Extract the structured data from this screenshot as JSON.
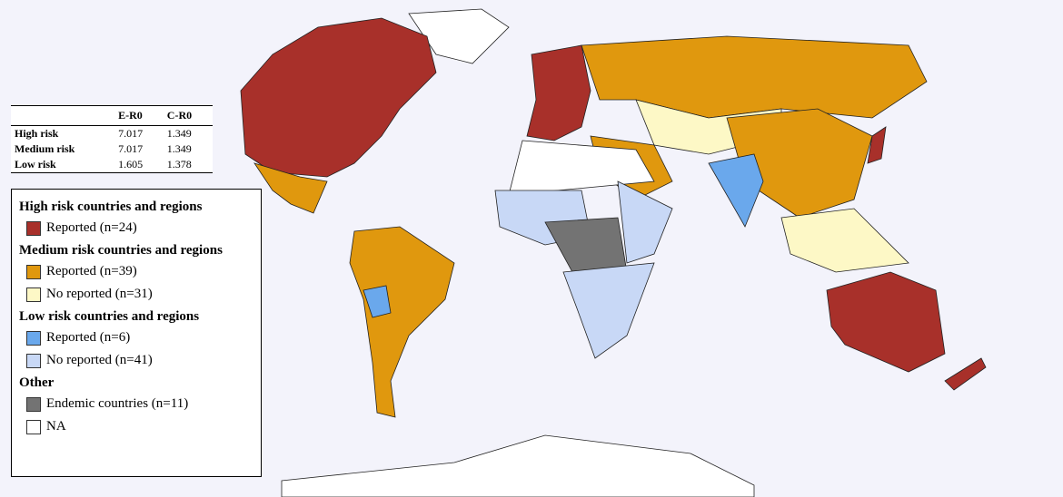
{
  "table": {
    "header": [
      "E-R0",
      "C-R0"
    ],
    "rows": [
      [
        "High risk",
        7.017,
        1.349
      ],
      [
        "Medium risk",
        7.017,
        1.349
      ],
      [
        "Low risk",
        1.605,
        1.378
      ]
    ]
  },
  "legend": {
    "groups": [
      {
        "title": "High risk countries and regions",
        "items": [
          {
            "label": "Reported (n=24)",
            "color": "#a8302a"
          }
        ]
      },
      {
        "title": "Medium risk countries and regions",
        "items": [
          {
            "label": "Reported (n=39)",
            "color": "#e0980e"
          },
          {
            "label": "No reported (n=31)",
            "color": "#fdf8c6"
          }
        ]
      },
      {
        "title": "Low risk countries and regions",
        "items": [
          {
            "label": "Reported (n=6)",
            "color": "#6aa8ec"
          },
          {
            "label": "No reported (n=41)",
            "color": "#c8d8f6"
          }
        ]
      },
      {
        "title": "Other",
        "items": [
          {
            "label": "Endemic countries (n=11)",
            "color": "#737373"
          },
          {
            "label": "NA",
            "color": "#ffffff"
          }
        ]
      }
    ]
  }
}
